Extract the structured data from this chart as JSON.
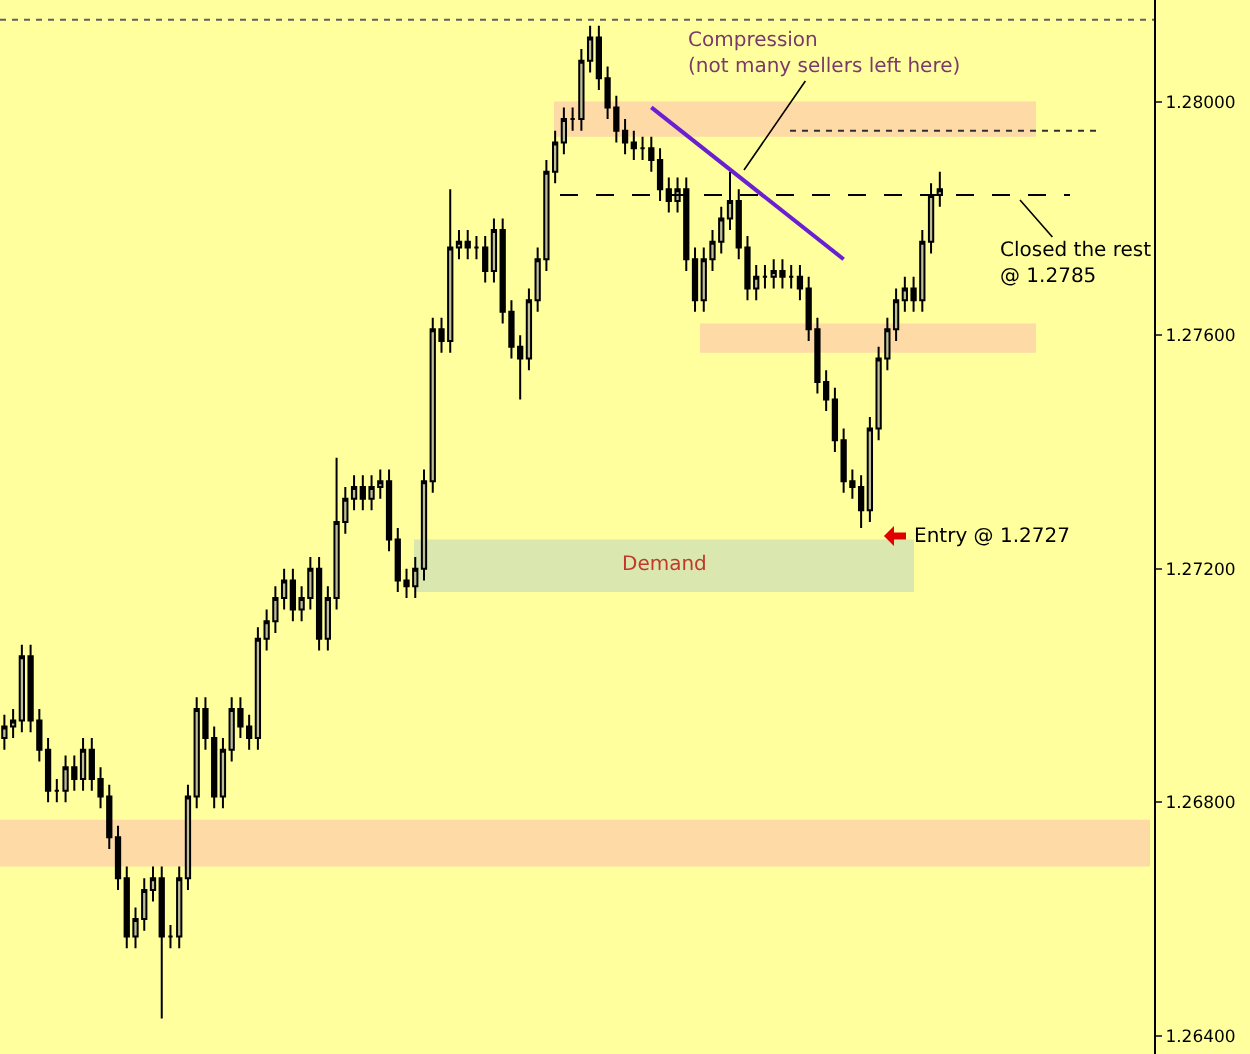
{
  "chart_data": {
    "type": "candlestick",
    "categories": [
      null,
      null,
      null,
      null,
      null,
      null,
      null,
      null,
      null,
      null,
      null,
      null,
      null,
      null,
      null,
      null,
      null,
      null,
      null,
      null,
      null,
      null,
      null,
      null,
      null,
      null,
      null,
      null,
      null,
      null,
      null,
      null,
      null,
      null,
      null,
      null,
      null,
      null,
      null,
      null,
      null,
      null,
      null,
      null,
      null,
      null,
      null,
      null,
      null,
      null,
      null,
      null,
      null,
      null,
      null,
      null,
      null,
      null,
      null,
      null,
      null,
      null,
      null,
      null,
      null,
      null,
      null,
      null,
      null,
      null,
      null,
      null,
      null,
      null,
      null,
      null,
      null,
      null,
      null,
      null,
      null,
      null,
      null,
      null,
      null,
      null,
      null,
      null,
      null,
      null,
      null,
      null,
      null,
      null,
      null,
      null,
      null,
      null,
      null,
      null,
      null,
      null,
      null,
      null,
      null,
      null,
      null,
      null,
      null,
      null,
      null,
      null,
      null,
      null,
      null,
      null,
      null,
      null,
      null,
      null,
      null,
      null,
      null,
      null,
      null,
      null,
      null,
      null,
      null,
      null,
      null,
      null
    ],
    "ohlc": [
      [
        1.2691,
        1.2695,
        1.2689,
        1.2693
      ],
      [
        1.2693,
        1.2696,
        1.2691,
        1.2694
      ],
      [
        1.2694,
        1.2707,
        1.2692,
        1.2705
      ],
      [
        1.2705,
        1.2707,
        1.2692,
        1.2694
      ],
      [
        1.2694,
        1.2696,
        1.2687,
        1.2689
      ],
      [
        1.2689,
        1.2691,
        1.268,
        1.2682
      ],
      [
        1.2682,
        1.2684,
        1.268,
        1.2682
      ],
      [
        1.2682,
        1.2688,
        1.268,
        1.2686
      ],
      [
        1.2686,
        1.2688,
        1.2682,
        1.2684
      ],
      [
        1.2684,
        1.2691,
        1.2682,
        1.2689
      ],
      [
        1.2689,
        1.2691,
        1.2682,
        1.2684
      ],
      [
        1.2684,
        1.2686,
        1.2679,
        1.2681
      ],
      [
        1.2681,
        1.2683,
        1.2672,
        1.2674
      ],
      [
        1.2674,
        1.2676,
        1.2665,
        1.2667
      ],
      [
        1.2667,
        1.2669,
        1.2655,
        1.2657
      ],
      [
        1.2657,
        1.2662,
        1.2655,
        1.266
      ],
      [
        1.266,
        1.2667,
        1.2658,
        1.2665
      ],
      [
        1.2665,
        1.2669,
        1.2663,
        1.2667
      ],
      [
        1.2667,
        1.2669,
        1.2643,
        1.2657
      ],
      [
        1.2657,
        1.2659,
        1.2655,
        1.2657
      ],
      [
        1.2657,
        1.2669,
        1.2655,
        1.2667
      ],
      [
        1.2667,
        1.2683,
        1.2665,
        1.2681
      ],
      [
        1.2681,
        1.2698,
        1.2679,
        1.2696
      ],
      [
        1.2696,
        1.2698,
        1.2689,
        1.2691
      ],
      [
        1.2691,
        1.2693,
        1.2679,
        1.2681
      ],
      [
        1.2681,
        1.2691,
        1.2679,
        1.2689
      ],
      [
        1.2689,
        1.2698,
        1.2687,
        1.2696
      ],
      [
        1.2696,
        1.2698,
        1.2691,
        1.2693
      ],
      [
        1.2693,
        1.2695,
        1.2689,
        1.2691
      ],
      [
        1.2691,
        1.271,
        1.2689,
        1.2708
      ],
      [
        1.2708,
        1.2713,
        1.2706,
        1.2711
      ],
      [
        1.2711,
        1.2717,
        1.2709,
        1.2715
      ],
      [
        1.2715,
        1.272,
        1.2713,
        1.2718
      ],
      [
        1.2718,
        1.272,
        1.2711,
        1.2713
      ],
      [
        1.2713,
        1.2717,
        1.2711,
        1.2715
      ],
      [
        1.2715,
        1.2722,
        1.2713,
        1.272
      ],
      [
        1.272,
        1.2722,
        1.2706,
        1.2708
      ],
      [
        1.2708,
        1.2717,
        1.2706,
        1.2715
      ],
      [
        1.2715,
        1.2739,
        1.2713,
        1.2728
      ],
      [
        1.2728,
        1.2734,
        1.2726,
        1.2732
      ],
      [
        1.2732,
        1.2736,
        1.273,
        1.2734
      ],
      [
        1.2734,
        1.2736,
        1.273,
        1.2732
      ],
      [
        1.2732,
        1.2736,
        1.273,
        1.2734
      ],
      [
        1.2734,
        1.2737,
        1.2732,
        1.2735
      ],
      [
        1.2735,
        1.2737,
        1.2723,
        1.2725
      ],
      [
        1.2725,
        1.2727,
        1.2716,
        1.2718
      ],
      [
        1.2718,
        1.272,
        1.2715,
        1.2717
      ],
      [
        1.2717,
        1.2722,
        1.2715,
        1.272
      ],
      [
        1.272,
        1.2737,
        1.2718,
        1.2735
      ],
      [
        1.2735,
        1.2763,
        1.2733,
        1.2761
      ],
      [
        1.2761,
        1.2763,
        1.2757,
        1.2759
      ],
      [
        1.2759,
        1.2785,
        1.2757,
        1.2775
      ],
      [
        1.2775,
        1.2778,
        1.2773,
        1.2776
      ],
      [
        1.2776,
        1.2778,
        1.2773,
        1.2775
      ],
      [
        1.2775,
        1.2777,
        1.2773,
        1.2775
      ],
      [
        1.2775,
        1.2777,
        1.2769,
        1.2771
      ],
      [
        1.2771,
        1.278,
        1.2769,
        1.2778
      ],
      [
        1.2778,
        1.278,
        1.2762,
        1.2764
      ],
      [
        1.2764,
        1.2766,
        1.2756,
        1.2758
      ],
      [
        1.2758,
        1.276,
        1.2749,
        1.2756
      ],
      [
        1.2756,
        1.2768,
        1.2754,
        1.2766
      ],
      [
        1.2766,
        1.2775,
        1.2764,
        1.2773
      ],
      [
        1.2773,
        1.279,
        1.2771,
        1.2788
      ],
      [
        1.2788,
        1.2795,
        1.2786,
        1.2793
      ],
      [
        1.2793,
        1.2799,
        1.2791,
        1.2797
      ],
      [
        1.2797,
        1.2799,
        1.2795,
        1.2797
      ],
      [
        1.2797,
        1.2809,
        1.2795,
        1.2807
      ],
      [
        1.2807,
        1.2813,
        1.2805,
        1.2811
      ],
      [
        1.2811,
        1.2813,
        1.2802,
        1.2804
      ],
      [
        1.2804,
        1.2806,
        1.2797,
        1.2799
      ],
      [
        1.2799,
        1.2801,
        1.2793,
        1.2795
      ],
      [
        1.2795,
        1.2797,
        1.2791,
        1.2793
      ],
      [
        1.2793,
        1.2795,
        1.279,
        1.2792
      ],
      [
        1.2792,
        1.2794,
        1.279,
        1.2792
      ],
      [
        1.2792,
        1.2794,
        1.2788,
        1.279
      ],
      [
        1.279,
        1.2792,
        1.2783,
        1.2785
      ],
      [
        1.2785,
        1.2787,
        1.2781,
        1.2783
      ],
      [
        1.2783,
        1.2787,
        1.2781,
        1.2785
      ],
      [
        1.2785,
        1.2787,
        1.2771,
        1.2773
      ],
      [
        1.2773,
        1.2775,
        1.2764,
        1.2766
      ],
      [
        1.2766,
        1.2775,
        1.2764,
        1.2773
      ],
      [
        1.2773,
        1.2778,
        1.2771,
        1.2776
      ],
      [
        1.2776,
        1.2782,
        1.2774,
        1.278
      ],
      [
        1.278,
        1.2788,
        1.2778,
        1.2783
      ],
      [
        1.2783,
        1.2785,
        1.2773,
        1.2775
      ],
      [
        1.2775,
        1.2777,
        1.2766,
        1.2768
      ],
      [
        1.2768,
        1.2772,
        1.2766,
        1.277
      ],
      [
        1.277,
        1.2772,
        1.2768,
        1.277
      ],
      [
        1.277,
        1.2773,
        1.2768,
        1.2771
      ],
      [
        1.2771,
        1.2773,
        1.2768,
        1.277
      ],
      [
        1.277,
        1.2772,
        1.2768,
        1.277
      ],
      [
        1.277,
        1.2772,
        1.2766,
        1.2768
      ],
      [
        1.2768,
        1.277,
        1.2759,
        1.2761
      ],
      [
        1.2761,
        1.2763,
        1.275,
        1.2752
      ],
      [
        1.2752,
        1.2754,
        1.2747,
        1.2749
      ],
      [
        1.2749,
        1.2751,
        1.274,
        1.2742
      ],
      [
        1.2742,
        1.2744,
        1.2733,
        1.2735
      ],
      [
        1.2735,
        1.2737,
        1.2732,
        1.2734
      ],
      [
        1.2734,
        1.2736,
        1.2727,
        1.273
      ],
      [
        1.273,
        1.2746,
        1.2728,
        1.2744
      ],
      [
        1.2744,
        1.2758,
        1.2742,
        1.2756
      ],
      [
        1.2756,
        1.2763,
        1.2754,
        1.2761
      ],
      [
        1.2761,
        1.2768,
        1.2759,
        1.2766
      ],
      [
        1.2766,
        1.277,
        1.2764,
        1.2768
      ],
      [
        1.2768,
        1.277,
        1.2764,
        1.2766
      ],
      [
        1.2766,
        1.2778,
        1.2764,
        1.2776
      ],
      [
        1.2776,
        1.2786,
        1.2774,
        1.2784
      ],
      [
        1.2784,
        1.2788,
        1.2782,
        1.2785
      ],
      null,
      null,
      null,
      null,
      null,
      null,
      null,
      null,
      null,
      null,
      null,
      null,
      null,
      null,
      null,
      null,
      null,
      null,
      null,
      null,
      null,
      null,
      null,
      null
    ],
    "series": [
      {
        "type": "line",
        "values": [
          null,
          null,
          null,
          null,
          null,
          null,
          null,
          null,
          null,
          null,
          null,
          null,
          null,
          null,
          null,
          null,
          null,
          null,
          null,
          null,
          null,
          null,
          null,
          null,
          null,
          null,
          null,
          null,
          null,
          null,
          null,
          null,
          null,
          null,
          null,
          null,
          null,
          null,
          null,
          null,
          null,
          null,
          null,
          null,
          null,
          null,
          null,
          null,
          null,
          null,
          null,
          null,
          null,
          null,
          null,
          null,
          null,
          null,
          null,
          null,
          null,
          null,
          null,
          null,
          null,
          null,
          null,
          null,
          null,
          null,
          null,
          null,
          null,
          null,
          1.2799,
          null,
          null,
          null,
          null,
          null,
          null,
          null,
          null,
          null,
          null,
          null,
          null,
          null,
          null,
          null,
          null,
          null,
          null,
          null,
          null,
          null,
          1.2773,
          null,
          null,
          null,
          null,
          null,
          null,
          null,
          null,
          null,
          null,
          null,
          null,
          null,
          null,
          null,
          null,
          null,
          null,
          null,
          null,
          null,
          null,
          null,
          null,
          null,
          null,
          null,
          null,
          null,
          null,
          null,
          null,
          null,
          null,
          null
        ],
        "color": "#6a1fd1"
      }
    ],
    "ylim": [
      1.26369,
      1.28174
    ],
    "yticks": [
      {
        "value": 1.264,
        "label": "1.26400"
      },
      {
        "value": 1.268,
        "label": "1.26800"
      },
      {
        "value": 1.272,
        "label": "1.27200"
      },
      {
        "value": 1.276,
        "label": "1.27600"
      },
      {
        "value": 1.28,
        "label": "1.28000"
      }
    ],
    "bands": [
      {
        "axis": "y",
        "from": 1.2794,
        "to": 1.28,
        "color": "#fddaa6"
      },
      {
        "axis": "y",
        "from": 1.2757,
        "to": 1.2762,
        "color": "#fddaa6"
      },
      {
        "axis": "y",
        "from": 1.2716,
        "to": 1.2725,
        "label": "Demand",
        "color": "#dae8b0"
      },
      {
        "axis": "y",
        "from": 1.2669,
        "to": 1.2677,
        "color": "#fddaa6"
      }
    ],
    "ref_lines": [
      {
        "axis": "y",
        "value": 1.2814,
        "line_style": "dotted",
        "color": "#606060"
      },
      {
        "axis": "y",
        "value": 1.2795,
        "line_style": "dotted",
        "color": "#303030"
      },
      {
        "axis": "y",
        "value": 1.2784,
        "line_style": "dashed",
        "color": "#000000"
      }
    ],
    "annotations": [
      "Compression\n(not many sellers left here)",
      "Closed the rest\n@ 1.2785",
      "Entry @ 1.2727"
    ]
  }
}
